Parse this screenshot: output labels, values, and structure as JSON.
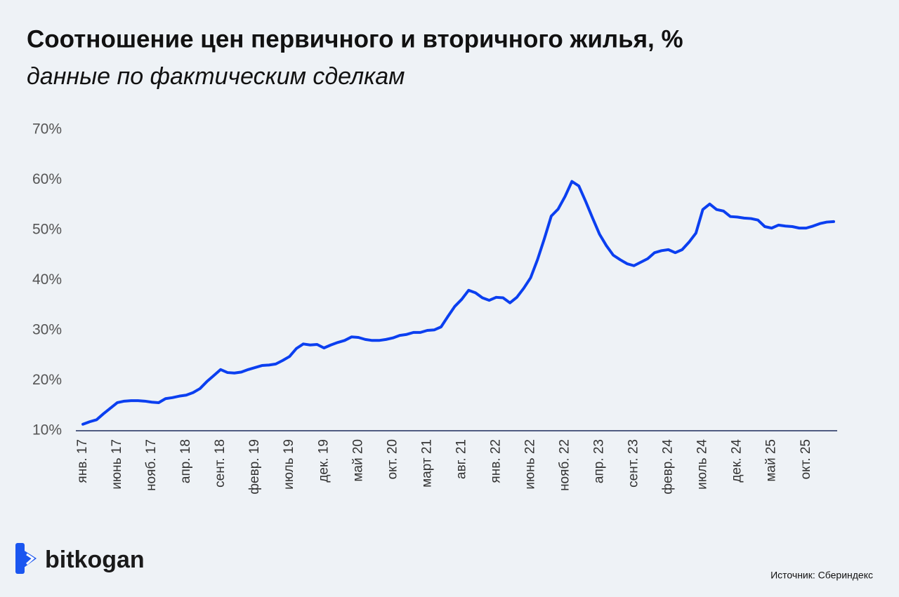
{
  "chart_data": {
    "type": "line",
    "title": "Соотношение цен первичного и вторичного жилья, %",
    "subtitle": "данные по фактическим сделкам",
    "categories": [
      "янв. 17",
      null,
      null,
      null,
      null,
      "июнь 17",
      null,
      null,
      null,
      null,
      "нояб. 17",
      null,
      null,
      null,
      null,
      "апр. 18",
      null,
      null,
      null,
      null,
      "сент. 18",
      null,
      null,
      null,
      null,
      "февр. 19",
      null,
      null,
      null,
      null,
      "июль 19",
      null,
      null,
      null,
      null,
      "дек. 19",
      null,
      null,
      null,
      null,
      "май 20",
      null,
      null,
      null,
      null,
      "окт. 20",
      null,
      null,
      null,
      null,
      "март 21",
      null,
      null,
      null,
      null,
      "авг. 21",
      null,
      null,
      null,
      null,
      "янв. 22",
      null,
      null,
      null,
      null,
      "июнь 22",
      null,
      null,
      null,
      null,
      "нояб. 22",
      null,
      null,
      null,
      null,
      "апр. 23",
      null,
      null,
      null,
      null,
      "сент. 23",
      null,
      null,
      null,
      null,
      "февр. 24",
      null,
      null,
      null,
      null,
      "июль 24",
      null,
      null,
      null,
      null,
      "дек. 24",
      null,
      null,
      null,
      null,
      "май 25",
      null,
      null,
      null,
      null,
      "окт. 25",
      null,
      null,
      null,
      null
    ],
    "values": [
      11.3,
      11.8,
      12.2,
      13.4,
      14.5,
      15.6,
      15.9,
      16.0,
      16.0,
      15.9,
      15.7,
      15.6,
      16.4,
      16.6,
      16.9,
      17.1,
      17.6,
      18.4,
      19.8,
      21.0,
      22.2,
      21.6,
      21.5,
      21.7,
      22.2,
      22.6,
      23.0,
      23.1,
      23.3,
      24.0,
      24.8,
      26.4,
      27.3,
      27.1,
      27.2,
      26.5,
      27.1,
      27.6,
      28.0,
      28.7,
      28.6,
      28.2,
      28.0,
      28.0,
      28.2,
      28.5,
      29.0,
      29.2,
      29.6,
      29.6,
      30.0,
      30.1,
      30.7,
      32.8,
      34.8,
      36.2,
      38.0,
      37.5,
      36.5,
      36.0,
      36.6,
      36.5,
      35.5,
      36.6,
      38.4,
      40.5,
      44.1,
      48.3,
      52.8,
      54.2,
      56.7,
      59.7,
      58.8,
      55.7,
      52.4,
      49.2,
      46.9,
      45.0,
      44.1,
      43.3,
      42.9,
      43.6,
      44.3,
      45.5,
      45.9,
      46.1,
      45.5,
      46.1,
      47.6,
      49.4,
      54.1,
      55.2,
      54.1,
      53.8,
      52.7,
      52.6,
      52.4,
      52.3,
      52.0,
      50.7,
      50.4,
      51.0,
      50.8,
      50.7,
      50.4,
      50.4,
      50.8,
      51.3,
      51.6,
      51.7
    ],
    "color": "#0b3ff0",
    "ylim": [
      10,
      70
    ],
    "yticks": [
      {
        "value": 10,
        "label": "10%"
      },
      {
        "value": 20,
        "label": "20%"
      },
      {
        "value": 30,
        "label": "30%"
      },
      {
        "value": 40,
        "label": "40%"
      },
      {
        "value": 50,
        "label": "50%"
      },
      {
        "value": 60,
        "label": "60%"
      },
      {
        "value": 70,
        "label": "70%"
      }
    ],
    "grid": false
  },
  "branding": {
    "logo": "bitkogan",
    "source": "Источник: Сбериндекс"
  }
}
